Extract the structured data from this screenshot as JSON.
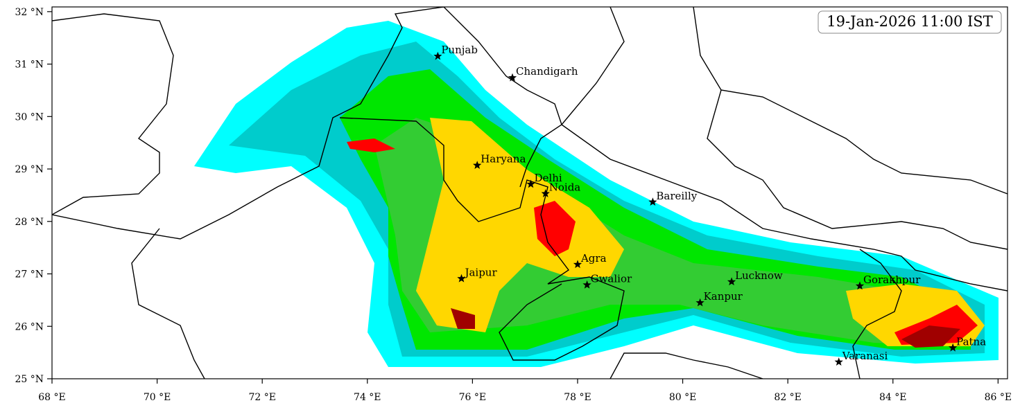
{
  "map": {
    "title": "19-Jan-2026 11:00 IST",
    "xlim": [
      68,
      86.18
    ],
    "ylim": [
      25,
      32.09
    ],
    "xticks": [
      {
        "value": 68,
        "label": "68 °E"
      },
      {
        "value": 70,
        "label": "70 °E"
      },
      {
        "value": 72,
        "label": "72 °E"
      },
      {
        "value": 74,
        "label": "74 °E"
      },
      {
        "value": 76,
        "label": "76 °E"
      },
      {
        "value": 78,
        "label": "78 °E"
      },
      {
        "value": 80,
        "label": "80 °E"
      },
      {
        "value": 82,
        "label": "82 °E"
      },
      {
        "value": 84,
        "label": "84 °E"
      },
      {
        "value": 86,
        "label": "86 °E"
      }
    ],
    "yticks": [
      {
        "value": 25,
        "label": "25 °N"
      },
      {
        "value": 26,
        "label": "26 °N"
      },
      {
        "value": 27,
        "label": "27 °N"
      },
      {
        "value": 28,
        "label": "28 °N"
      },
      {
        "value": 29,
        "label": "29 °N"
      },
      {
        "value": 30,
        "label": "30 °N"
      },
      {
        "value": 31,
        "label": "31 °N"
      },
      {
        "value": 32,
        "label": "32 °N"
      }
    ],
    "cities": [
      {
        "name": "Punjab",
        "lon": 75.34,
        "lat": 31.15
      },
      {
        "name": "Chandigarh",
        "lon": 76.76,
        "lat": 30.74
      },
      {
        "name": "Haryana",
        "lon": 76.09,
        "lat": 29.07
      },
      {
        "name": "Delhi",
        "lon": 77.11,
        "lat": 28.71
      },
      {
        "name": "Noida",
        "lon": 77.39,
        "lat": 28.53
      },
      {
        "name": "Bareilly",
        "lon": 79.43,
        "lat": 28.37
      },
      {
        "name": "Agra",
        "lon": 78.0,
        "lat": 27.18
      },
      {
        "name": "Jaipur",
        "lon": 75.79,
        "lat": 26.91
      },
      {
        "name": "Gwalior",
        "lon": 78.18,
        "lat": 26.79
      },
      {
        "name": "Lucknow",
        "lon": 80.93,
        "lat": 26.85
      },
      {
        "name": "Kanpur",
        "lon": 80.33,
        "lat": 26.45
      },
      {
        "name": "Gorakhpur",
        "lon": 83.37,
        "lat": 26.77
      },
      {
        "name": "Patna",
        "lon": 85.14,
        "lat": 25.59
      },
      {
        "name": "Varanasi",
        "lon": 82.97,
        "lat": 25.32
      }
    ]
  }
}
